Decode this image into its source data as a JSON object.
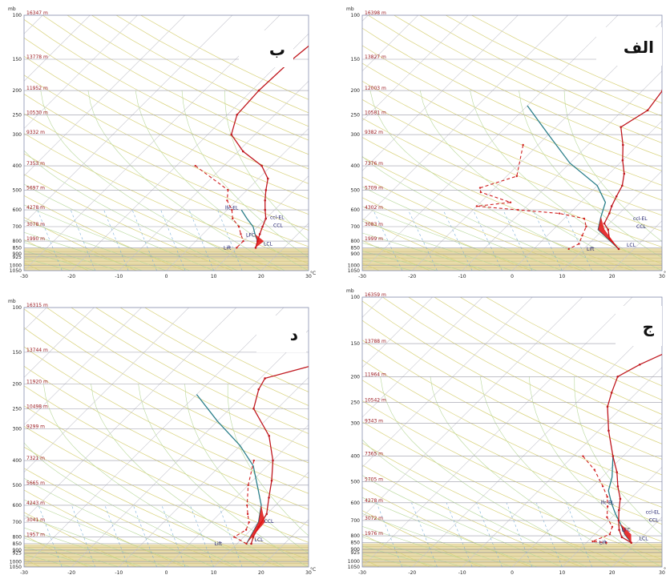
{
  "chart_data": [
    {
      "type": "line",
      "panel_label": "ب",
      "pressure_ticks": [
        100,
        150,
        200,
        250,
        300,
        400,
        500,
        600,
        700,
        800,
        850,
        900,
        925,
        1000,
        1050
      ],
      "pressure_unit": "mb",
      "x_ticks": [
        -30,
        -20,
        -10,
        0,
        10,
        20,
        30
      ],
      "x_unit": "°C",
      "xlim": [
        -30,
        30
      ],
      "height_labels": [
        {
          "p": 100,
          "text": "16347 m"
        },
        {
          "p": 150,
          "text": "13778 m"
        },
        {
          "p": 200,
          "text": "11952 m"
        },
        {
          "p": 250,
          "text": "10530 m"
        },
        {
          "p": 300,
          "text": "9332 m"
        },
        {
          "p": 400,
          "text": "7353 m"
        },
        {
          "p": 500,
          "text": "5697 m"
        },
        {
          "p": 600,
          "text": "4278 m"
        },
        {
          "p": 700,
          "text": "3078 m"
        },
        {
          "p": 800,
          "text": "1990 m"
        }
      ],
      "temperature": [
        [
          -16,
          100
        ],
        [
          -18,
          150
        ],
        [
          -18.5,
          200
        ],
        [
          -18,
          250
        ],
        [
          -15,
          300
        ],
        [
          -9,
          350
        ],
        [
          -2,
          400
        ],
        [
          2,
          450
        ],
        [
          4,
          500
        ],
        [
          6,
          550
        ],
        [
          8,
          600
        ],
        [
          10,
          650
        ],
        [
          11,
          700
        ],
        [
          12,
          750
        ],
        [
          13,
          800
        ],
        [
          14,
          850
        ]
      ],
      "dewpoint": [
        [
          -16,
          400
        ],
        [
          -4,
          500
        ],
        [
          -2,
          550
        ],
        [
          1,
          600
        ],
        [
          3,
          650
        ],
        [
          6,
          700
        ],
        [
          8,
          750
        ],
        [
          10,
          800
        ],
        [
          10,
          850
        ]
      ],
      "parcel": [
        [
          3,
          600
        ],
        [
          6,
          650
        ],
        [
          9,
          700
        ],
        [
          11,
          750
        ],
        [
          13,
          800
        ],
        [
          14,
          850
        ]
      ],
      "annotations": [
        "lfc-EL",
        "ccl-EL",
        "CCL",
        "LFC",
        "LCL",
        "Lift"
      ]
    },
    {
      "type": "line",
      "panel_label": "الف",
      "pressure_ticks": [
        100,
        150,
        200,
        250,
        300,
        400,
        500,
        600,
        700,
        800,
        850,
        900,
        1000,
        1050
      ],
      "pressure_unit": "mb",
      "x_ticks": [
        -30,
        -20,
        -10,
        0,
        10,
        20,
        30
      ],
      "x_unit": "°C",
      "xlim": [
        -30,
        30
      ],
      "height_labels": [
        {
          "p": 100,
          "text": "16398 m"
        },
        {
          "p": 150,
          "text": "13827 m"
        },
        {
          "p": 200,
          "text": "12003 m"
        },
        {
          "p": 250,
          "text": "10581 m"
        },
        {
          "p": 300,
          "text": "9382 m"
        },
        {
          "p": 400,
          "text": "7376 m"
        },
        {
          "p": 500,
          "text": "5709 m"
        },
        {
          "p": 600,
          "text": "4302 m"
        },
        {
          "p": 700,
          "text": "3083 m"
        },
        {
          "p": 800,
          "text": "1999 m"
        }
      ],
      "temperature": [
        [
          -1,
          100
        ],
        [
          -3,
          115
        ],
        [
          -4,
          140
        ],
        [
          -3,
          170
        ],
        [
          -6,
          200
        ],
        [
          -5,
          240
        ],
        [
          -7,
          280
        ],
        [
          -3,
          330
        ],
        [
          0,
          380
        ],
        [
          3,
          430
        ],
        [
          5,
          480
        ],
        [
          6,
          530
        ],
        [
          7,
          580
        ],
        [
          8,
          620
        ],
        [
          9,
          680
        ],
        [
          11,
          720
        ],
        [
          13,
          780
        ],
        [
          17,
          860
        ]
      ],
      "dewpoint": [
        [
          -23,
          330
        ],
        [
          -18,
          440
        ],
        [
          -23,
          490
        ],
        [
          -22,
          510
        ],
        [
          -14,
          560
        ],
        [
          -20,
          580
        ],
        [
          -11,
          600
        ],
        [
          -2,
          620
        ],
        [
          4,
          650
        ],
        [
          6,
          700
        ],
        [
          7,
          760
        ],
        [
          8,
          820
        ],
        [
          7,
          860
        ]
      ],
      "parcel": [
        [
          -30,
          230
        ],
        [
          -20,
          300
        ],
        [
          -10,
          390
        ],
        [
          0,
          480
        ],
        [
          5,
          560
        ],
        [
          7,
          640
        ],
        [
          9,
          720
        ],
        [
          17,
          860
        ]
      ],
      "annotations": [
        "ccl-EL",
        "CCL",
        "LCL",
        "Lift"
      ]
    },
    {
      "type": "line",
      "panel_label": "د",
      "pressure_ticks": [
        100,
        150,
        200,
        250,
        300,
        400,
        500,
        600,
        700,
        800,
        850,
        900,
        925,
        1000,
        1050
      ],
      "pressure_unit": "mb",
      "x_ticks": [
        -30,
        -20,
        -10,
        0,
        10,
        20,
        30
      ],
      "x_unit": "°C",
      "xlim": [
        -30,
        30
      ],
      "height_labels": [
        {
          "p": 100,
          "text": "16315 m"
        },
        {
          "p": 150,
          "text": "13744 m"
        },
        {
          "p": 200,
          "text": "11920 m"
        },
        {
          "p": 250,
          "text": "10498 m"
        },
        {
          "p": 300,
          "text": "9299 m"
        },
        {
          "p": 400,
          "text": "7321 m"
        },
        {
          "p": 500,
          "text": "5665 m"
        },
        {
          "p": 600,
          "text": "4243 m"
        },
        {
          "p": 700,
          "text": "3041 m"
        },
        {
          "p": 800,
          "text": "1957 m"
        }
      ],
      "temperature": [
        [
          0,
          100
        ],
        [
          -8,
          120
        ],
        [
          -8,
          150
        ],
        [
          -12,
          170
        ],
        [
          -19,
          190
        ],
        [
          -18,
          210
        ],
        [
          -15,
          250
        ],
        [
          -6,
          320
        ],
        [
          0,
          400
        ],
        [
          4,
          480
        ],
        [
          7,
          560
        ],
        [
          10,
          650
        ],
        [
          11,
          730
        ],
        [
          12,
          800
        ],
        [
          13,
          850
        ]
      ],
      "dewpoint": [
        [
          -4,
          400
        ],
        [
          0,
          500
        ],
        [
          4,
          600
        ],
        [
          6,
          650
        ],
        [
          8,
          700
        ],
        [
          9,
          750
        ],
        [
          8,
          800
        ],
        [
          12,
          850
        ]
      ],
      "parcel": [
        [
          -30,
          220
        ],
        [
          -20,
          280
        ],
        [
          -10,
          350
        ],
        [
          -3,
          420
        ],
        [
          3,
          520
        ],
        [
          7,
          600
        ],
        [
          10,
          700
        ],
        [
          12,
          850
        ]
      ],
      "annotations": [
        "CCL",
        "LCL",
        "Lift"
      ]
    },
    {
      "type": "line",
      "panel_label": "ج",
      "pressure_ticks": [
        100,
        150,
        200,
        250,
        300,
        400,
        500,
        600,
        700,
        800,
        850,
        900,
        925,
        1000,
        1050
      ],
      "pressure_unit": "mb",
      "x_ticks": [
        -30,
        -20,
        -10,
        0,
        10,
        20,
        30
      ],
      "x_unit": "°C",
      "xlim": [
        -30,
        30
      ],
      "height_labels": [
        {
          "p": 100,
          "text": "16359 m"
        },
        {
          "p": 150,
          "text": "13788 m"
        },
        {
          "p": 200,
          "text": "11964 m"
        },
        {
          "p": 250,
          "text": "10542 m"
        },
        {
          "p": 300,
          "text": "9343 m"
        },
        {
          "p": 400,
          "text": "7365 m"
        },
        {
          "p": 500,
          "text": "5705 m"
        },
        {
          "p": 600,
          "text": "4278 m"
        },
        {
          "p": 700,
          "text": "3072 m"
        },
        {
          "p": 800,
          "text": "1976 m"
        }
      ],
      "temperature": [
        [
          -2,
          100
        ],
        [
          -9,
          140
        ],
        [
          -10,
          150
        ],
        [
          -15,
          180
        ],
        [
          -17,
          200
        ],
        [
          -15,
          230
        ],
        [
          -13,
          260
        ],
        [
          -8,
          320
        ],
        [
          -2,
          400
        ],
        [
          2,
          460
        ],
        [
          5,
          520
        ],
        [
          8,
          580
        ],
        [
          10,
          640
        ],
        [
          12,
          700
        ],
        [
          14,
          760
        ],
        [
          16,
          810
        ],
        [
          19,
          850
        ]
      ],
      "dewpoint": [
        [
          -8,
          400
        ],
        [
          -3,
          450
        ],
        [
          2,
          520
        ],
        [
          5,
          570
        ],
        [
          7,
          620
        ],
        [
          9,
          680
        ],
        [
          12,
          740
        ],
        [
          13,
          790
        ],
        [
          11,
          840
        ],
        [
          14,
          850
        ]
      ],
      "parcel": [
        [
          -2,
          400
        ],
        [
          2,
          480
        ],
        [
          4,
          540
        ],
        [
          7,
          600
        ],
        [
          10,
          660
        ],
        [
          13,
          720
        ],
        [
          16,
          790
        ],
        [
          19,
          850
        ]
      ],
      "annotations": [
        "lfc-EL",
        "ccl-EL",
        "CCL",
        "LFC",
        "LCL",
        "Lift"
      ]
    }
  ],
  "styles": {
    "temperature_color": "#c0181f",
    "dewpoint_color": "#d02020",
    "parcel_color": "#2b7f8a",
    "grid_isobar": "#9a9aa8",
    "grid_isotherm": "#c8c8d0",
    "dry_adiabat": "#d8d27a",
    "moist_adiabat": "#b8d89a",
    "mixing_ratio": "#7ab0d8",
    "ground_fill": "#e8dcaa",
    "cape_fill": "#e21010",
    "cin_fill": "#2233cc"
  }
}
